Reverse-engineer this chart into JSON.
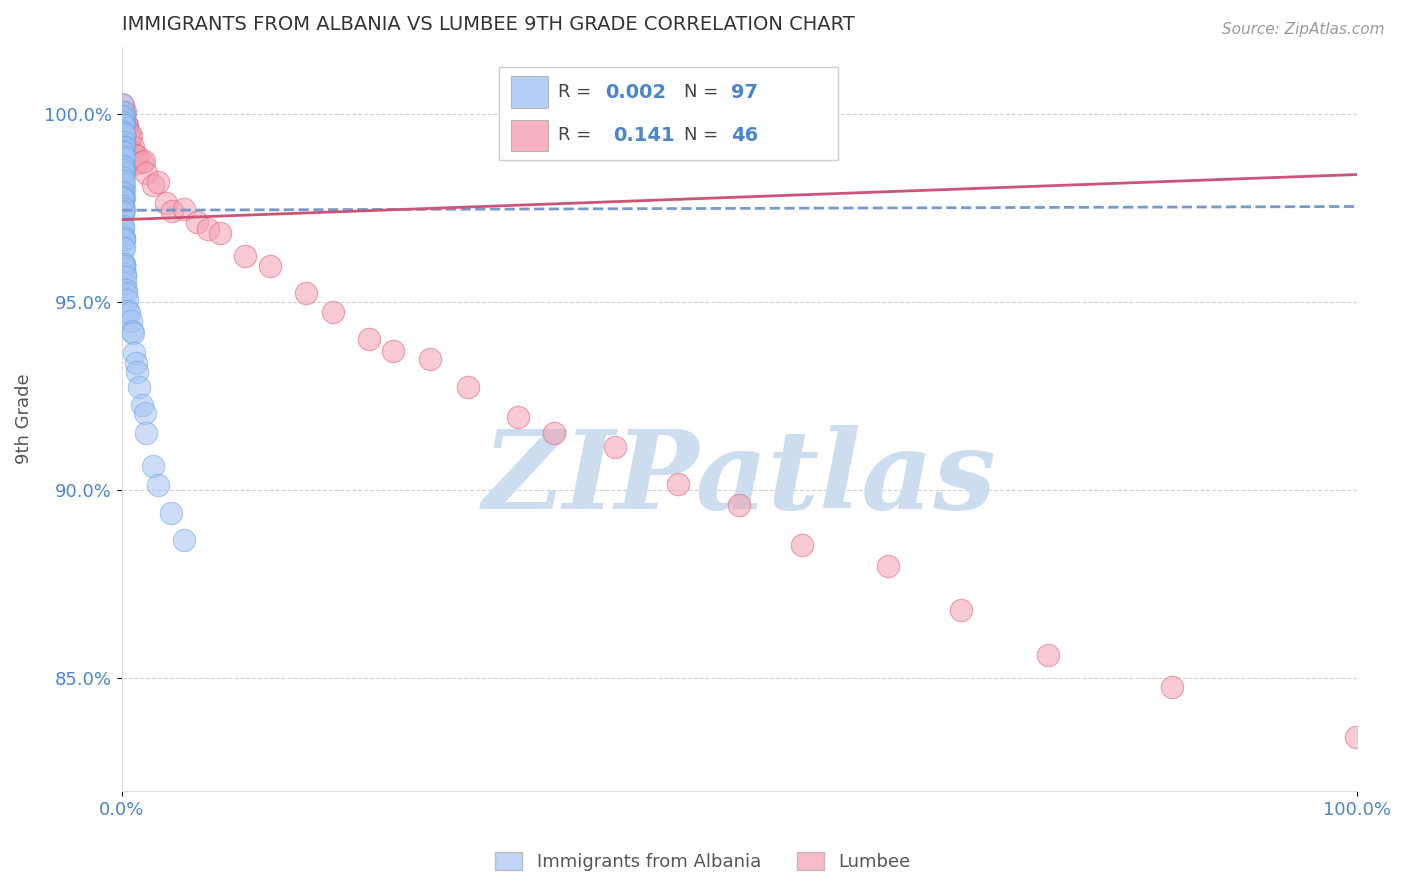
{
  "title": "IMMIGRANTS FROM ALBANIA VS LUMBEE 9TH GRADE CORRELATION CHART",
  "source_text": "Source: ZipAtlas.com",
  "ylabel": "9th Grade",
  "xlim": [
    0.0,
    1.0
  ],
  "ylim": [
    0.82,
    1.018
  ],
  "yticks": [
    0.85,
    0.9,
    0.95,
    1.0
  ],
  "ytick_labels": [
    "85.0%",
    "90.0%",
    "95.0%",
    "100.0%"
  ],
  "xticks": [
    0.0,
    1.0
  ],
  "xtick_labels": [
    "0.0%",
    "100.0%"
  ],
  "blue_color": "#a4c2f4",
  "blue_edge": "#6fa8dc",
  "pink_color": "#f4a0b0",
  "pink_edge": "#e06080",
  "blue_line_color": "#7799cc",
  "pink_line_color": "#cc5577",
  "legend_blue_label": "Immigrants from Albania",
  "legend_pink_label": "Lumbee",
  "R_blue": "0.002",
  "N_blue": "97",
  "R_pink": "0.141",
  "N_pink": "46",
  "watermark": "ZIPatlas",
  "watermark_color": "#ccddf0",
  "axis_color": "#4a86c8",
  "grid_color": "#cccccc",
  "blue_trend_y0": 0.9745,
  "blue_trend_y1": 0.9755,
  "pink_trend_y0": 0.972,
  "pink_trend_y1": 0.984,
  "blue_x": [
    0.001,
    0.001,
    0.001,
    0.001,
    0.001,
    0.001,
    0.001,
    0.001,
    0.001,
    0.001,
    0.001,
    0.001,
    0.001,
    0.001,
    0.001,
    0.001,
    0.001,
    0.001,
    0.001,
    0.001,
    0.001,
    0.001,
    0.001,
    0.001,
    0.001,
    0.001,
    0.001,
    0.001,
    0.001,
    0.001,
    0.001,
    0.001,
    0.001,
    0.001,
    0.001,
    0.001,
    0.001,
    0.001,
    0.001,
    0.001,
    0.001,
    0.001,
    0.001,
    0.001,
    0.001,
    0.001,
    0.001,
    0.001,
    0.001,
    0.001,
    0.001,
    0.001,
    0.001,
    0.001,
    0.001,
    0.001,
    0.001,
    0.001,
    0.001,
    0.001,
    0.001,
    0.001,
    0.001,
    0.001,
    0.001,
    0.001,
    0.001,
    0.001,
    0.001,
    0.001,
    0.001,
    0.002,
    0.002,
    0.002,
    0.002,
    0.002,
    0.003,
    0.003,
    0.004,
    0.004,
    0.005,
    0.005,
    0.006,
    0.007,
    0.008,
    0.009,
    0.01,
    0.011,
    0.012,
    0.014,
    0.016,
    0.018,
    0.02,
    0.025,
    0.03,
    0.04,
    0.05
  ],
  "blue_y": [
    1.002,
    1.001,
    1.0,
    0.999,
    0.999,
    0.998,
    0.998,
    0.997,
    0.997,
    0.996,
    0.996,
    0.996,
    0.995,
    0.995,
    0.995,
    0.994,
    0.994,
    0.994,
    0.993,
    0.993,
    0.993,
    0.992,
    0.992,
    0.992,
    0.991,
    0.991,
    0.99,
    0.99,
    0.989,
    0.989,
    0.989,
    0.988,
    0.988,
    0.987,
    0.987,
    0.987,
    0.986,
    0.986,
    0.985,
    0.985,
    0.985,
    0.984,
    0.984,
    0.983,
    0.983,
    0.982,
    0.982,
    0.981,
    0.981,
    0.98,
    0.98,
    0.979,
    0.979,
    0.978,
    0.978,
    0.977,
    0.976,
    0.975,
    0.975,
    0.974,
    0.973,
    0.972,
    0.971,
    0.97,
    0.969,
    0.968,
    0.967,
    0.966,
    0.965,
    0.964,
    0.963,
    0.962,
    0.961,
    0.96,
    0.959,
    0.958,
    0.957,
    0.956,
    0.955,
    0.953,
    0.951,
    0.949,
    0.947,
    0.945,
    0.943,
    0.941,
    0.938,
    0.935,
    0.932,
    0.928,
    0.924,
    0.919,
    0.914,
    0.908,
    0.902,
    0.895,
    0.887
  ],
  "pink_x": [
    0.001,
    0.001,
    0.002,
    0.002,
    0.003,
    0.003,
    0.004,
    0.005,
    0.005,
    0.006,
    0.007,
    0.008,
    0.009,
    0.01,
    0.012,
    0.013,
    0.015,
    0.017,
    0.02,
    0.025,
    0.03,
    0.035,
    0.04,
    0.05,
    0.06,
    0.07,
    0.08,
    0.1,
    0.12,
    0.15,
    0.17,
    0.2,
    0.22,
    0.25,
    0.28,
    0.32,
    0.35,
    0.4,
    0.45,
    0.5,
    0.55,
    0.62,
    0.68,
    0.75,
    0.85,
    1.0
  ],
  "pink_y": [
    1.001,
    1.0,
    0.999,
    0.999,
    0.998,
    0.997,
    0.997,
    0.996,
    0.995,
    0.994,
    0.993,
    0.992,
    0.991,
    0.99,
    0.989,
    0.988,
    0.987,
    0.986,
    0.984,
    0.982,
    0.98,
    0.978,
    0.976,
    0.974,
    0.972,
    0.97,
    0.967,
    0.963,
    0.958,
    0.952,
    0.948,
    0.942,
    0.938,
    0.933,
    0.928,
    0.921,
    0.916,
    0.91,
    0.903,
    0.895,
    0.887,
    0.878,
    0.868,
    0.858,
    0.846,
    0.835
  ]
}
